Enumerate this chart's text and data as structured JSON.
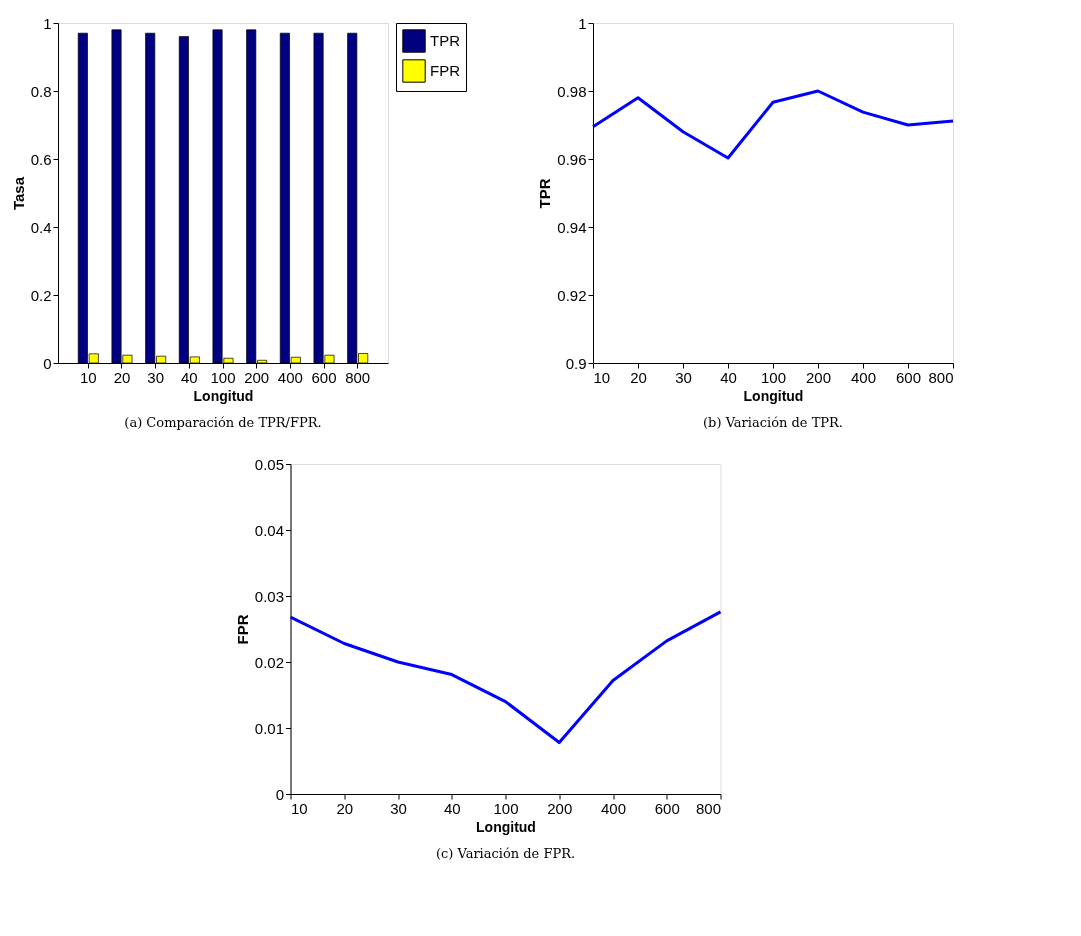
{
  "chart_data": [
    {
      "type": "bar",
      "categories": [
        "10",
        "20",
        "30",
        "40",
        "100",
        "200",
        "400",
        "600",
        "800"
      ],
      "series": [
        {
          "name": "TPR",
          "color": "#000080",
          "values": [
            0.97,
            0.98,
            0.97,
            0.96,
            0.98,
            0.98,
            0.97,
            0.97,
            0.97
          ]
        },
        {
          "name": "FPR",
          "color": "#ffff00",
          "values": [
            0.027,
            0.023,
            0.02,
            0.018,
            0.014,
            0.008,
            0.017,
            0.023,
            0.028
          ]
        }
      ],
      "ylim": [
        0,
        1
      ],
      "yticks": [
        0,
        0.2,
        0.4,
        0.6,
        0.8,
        1
      ],
      "xlabel": "Longitud",
      "ylabel": "Tasa",
      "legend": "right",
      "grid": false,
      "annotations": [
        "(a) Comparación de TPR/FPR."
      ]
    },
    {
      "type": "line",
      "categories": [
        "10",
        "20",
        "30",
        "40",
        "100",
        "200",
        "400",
        "600",
        "800"
      ],
      "series": [
        {
          "color": "#0000ff",
          "values": [
            0.9695,
            0.978,
            0.968,
            0.9603,
            0.9767,
            0.98,
            0.9738,
            0.97,
            0.9712
          ]
        }
      ],
      "ylim": [
        0.9,
        1
      ],
      "yticks": [
        0.9,
        0.92,
        0.94,
        0.96,
        0.98,
        1
      ],
      "xlabel": "Longitud",
      "ylabel": "TPR",
      "grid": false,
      "annotations": [
        "(b) Variación de TPR."
      ]
    },
    {
      "type": "line",
      "categories": [
        "10",
        "20",
        "30",
        "40",
        "100",
        "200",
        "400",
        "600",
        "800"
      ],
      "series": [
        {
          "color": "#0000ff",
          "values": [
            0.0268,
            0.0228,
            0.02,
            0.0181,
            0.014,
            0.0078,
            0.0172,
            0.0232,
            0.0276
          ]
        }
      ],
      "ylim": [
        0,
        0.05
      ],
      "yticks": [
        0,
        0.01,
        0.02,
        0.03,
        0.04,
        0.05
      ],
      "xlabel": "Longitud",
      "ylabel": "FPR",
      "grid": false,
      "annotations": [
        "(c) Variación de FPR."
      ]
    }
  ]
}
